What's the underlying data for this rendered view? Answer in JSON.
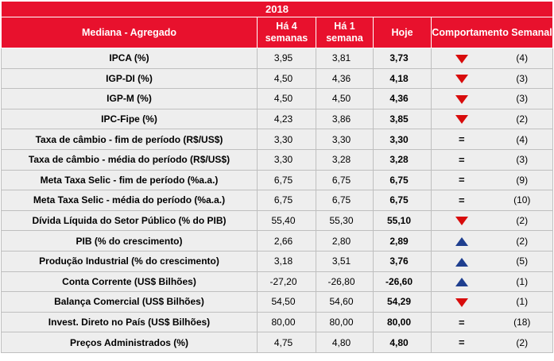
{
  "year": "2018",
  "headers": {
    "label": "Mediana - Agregado",
    "col1": "Há 4 semanas",
    "col2": "Há 1 semana",
    "col3": "Hoje",
    "col4": "Comportamento Semanal"
  },
  "colors": {
    "header_bg": "#e8112d",
    "row_bg": "#eeeeee",
    "down": "#d80c0c",
    "up": "#1f3f8f"
  },
  "rows": [
    {
      "label": "IPCA (%)",
      "w4": "3,95",
      "w1": "3,81",
      "today": "3,73",
      "trend": "down",
      "count": "(4)"
    },
    {
      "label": "IGP-DI (%)",
      "w4": "4,50",
      "w1": "4,36",
      "today": "4,18",
      "trend": "down",
      "count": "(3)"
    },
    {
      "label": "IGP-M (%)",
      "w4": "4,50",
      "w1": "4,50",
      "today": "4,36",
      "trend": "down",
      "count": "(3)"
    },
    {
      "label": "IPC-Fipe (%)",
      "w4": "4,23",
      "w1": "3,86",
      "today": "3,85",
      "trend": "down",
      "count": "(2)"
    },
    {
      "label": "Taxa de câmbio - fim de período (R$/US$)",
      "w4": "3,30",
      "w1": "3,30",
      "today": "3,30",
      "trend": "equal",
      "symbol": "=",
      "count": "(4)"
    },
    {
      "label": "Taxa de câmbio - média do período (R$/US$)",
      "w4": "3,30",
      "w1": "3,28",
      "today": "3,28",
      "trend": "equal",
      "symbol": "=",
      "count": "(3)"
    },
    {
      "label": "Meta Taxa Selic - fim de período (%a.a.)",
      "w4": "6,75",
      "w1": "6,75",
      "today": "6,75",
      "trend": "equal",
      "symbol": "=",
      "count": "(9)"
    },
    {
      "label": "Meta Taxa Selic - média do período (%a.a.)",
      "w4": "6,75",
      "w1": "6,75",
      "today": "6,75",
      "trend": "equal",
      "symbol": "=",
      "count": "(10)"
    },
    {
      "label": "Dívida Líquida do Setor Público (% do PIB)",
      "w4": "55,40",
      "w1": "55,30",
      "today": "55,10",
      "trend": "down",
      "count": "(2)"
    },
    {
      "label": "PIB (% do crescimento)",
      "w4": "2,66",
      "w1": "2,80",
      "today": "2,89",
      "trend": "up",
      "count": "(2)"
    },
    {
      "label": "Produção Industrial (% do crescimento)",
      "w4": "3,18",
      "w1": "3,51",
      "today": "3,76",
      "trend": "up",
      "count": "(5)"
    },
    {
      "label": "Conta Corrente (US$ Bilhões)",
      "w4": "-27,20",
      "w1": "-26,80",
      "today": "-26,60",
      "trend": "up",
      "count": "(1)"
    },
    {
      "label": "Balança Comercial (US$ Bilhões)",
      "w4": "54,50",
      "w1": "54,60",
      "today": "54,29",
      "trend": "down",
      "count": "(1)"
    },
    {
      "label": "Invest. Direto no País (US$ Bilhões)",
      "w4": "80,00",
      "w1": "80,00",
      "today": "80,00",
      "trend": "equal",
      "symbol": "=",
      "count": "(18)"
    },
    {
      "label": "Preços Administrados (%)",
      "w4": "4,75",
      "w1": "4,80",
      "today": "4,80",
      "trend": "equal",
      "symbol": "=",
      "count": "(2)"
    }
  ]
}
